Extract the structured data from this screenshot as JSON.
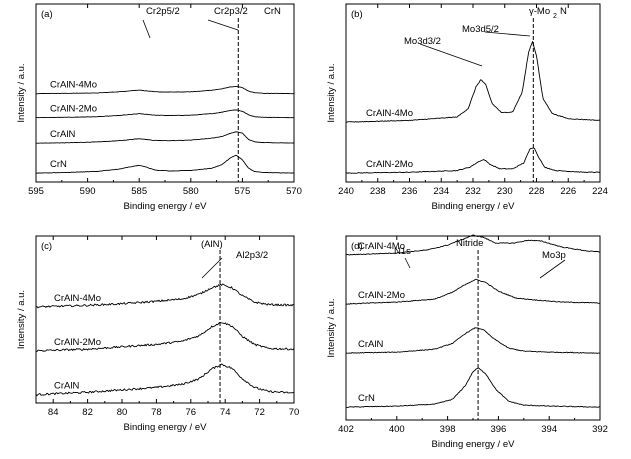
{
  "chart_data": [
    {
      "type": "line",
      "panel_label": "(a)",
      "xlabel": "Binding energy / eV",
      "ylabel": "Intensity / a.u.",
      "xlim": [
        595,
        570
      ],
      "x_reversed": true,
      "xticks": [
        595,
        590,
        585,
        580,
        575,
        570
      ],
      "tick_labels": [
        "595",
        "590",
        "585",
        "580",
        "575",
        "570"
      ],
      "ref_line_x": 575.4,
      "annotations": [
        {
          "text": "Cr2p5/2",
          "x": 585.5
        },
        {
          "text": "Cr2p3/2",
          "x": 577.2
        },
        {
          "text": "CrN",
          "x": 575.6
        }
      ],
      "series": [
        {
          "name": "CrN",
          "offset": 0.0,
          "values": [
            [
              595,
              0.0
            ],
            [
              592,
              0.02
            ],
            [
              589,
              0.06
            ],
            [
              587,
              0.13
            ],
            [
              586,
              0.2
            ],
            [
              585,
              0.26
            ],
            [
              584.3,
              0.2
            ],
            [
              583.5,
              0.1
            ],
            [
              582,
              0.07
            ],
            [
              580,
              0.09
            ],
            [
              578,
              0.16
            ],
            [
              577,
              0.28
            ],
            [
              576.2,
              0.5
            ],
            [
              575.6,
              0.6
            ],
            [
              575.0,
              0.44
            ],
            [
              574.4,
              0.16
            ],
            [
              573.8,
              0.05
            ],
            [
              573,
              0.02
            ],
            [
              570,
              0.0
            ]
          ]
        },
        {
          "name": "CrAlN",
          "offset": 1.0,
          "values": [
            [
              595,
              0.0
            ],
            [
              592,
              0.01
            ],
            [
              589,
              0.04
            ],
            [
              587,
              0.08
            ],
            [
              586,
              0.11
            ],
            [
              585,
              0.15
            ],
            [
              584.3,
              0.12
            ],
            [
              583.5,
              0.09
            ],
            [
              582,
              0.08
            ],
            [
              580,
              0.1
            ],
            [
              578,
              0.16
            ],
            [
              577,
              0.22
            ],
            [
              576.2,
              0.32
            ],
            [
              575.6,
              0.38
            ],
            [
              575.0,
              0.33
            ],
            [
              574.4,
              0.12
            ],
            [
              573.8,
              0.04
            ],
            [
              573,
              0.02
            ],
            [
              570,
              0.0
            ]
          ]
        },
        {
          "name": "CrAlN-2Mo",
          "offset": 1.85,
          "values": [
            [
              595,
              0.0
            ],
            [
              592,
              0.01
            ],
            [
              589,
              0.03
            ],
            [
              587,
              0.07
            ],
            [
              586,
              0.1
            ],
            [
              585,
              0.13
            ],
            [
              584.3,
              0.11
            ],
            [
              583.5,
              0.08
            ],
            [
              582,
              0.07
            ],
            [
              580,
              0.08
            ],
            [
              578,
              0.13
            ],
            [
              577,
              0.18
            ],
            [
              576.2,
              0.24
            ],
            [
              575.6,
              0.26
            ],
            [
              575.0,
              0.21
            ],
            [
              574.4,
              0.09
            ],
            [
              573.8,
              0.03
            ],
            [
              573,
              0.01
            ],
            [
              570,
              0.0
            ]
          ]
        },
        {
          "name": "CrAlN-4Mo",
          "offset": 2.65,
          "values": [
            [
              595,
              0.0
            ],
            [
              592,
              0.01
            ],
            [
              589,
              0.02
            ],
            [
              587,
              0.06
            ],
            [
              586,
              0.09
            ],
            [
              585,
              0.12
            ],
            [
              584.3,
              0.09
            ],
            [
              583.5,
              0.06
            ],
            [
              582,
              0.05
            ],
            [
              580,
              0.06
            ],
            [
              578,
              0.11
            ],
            [
              577,
              0.16
            ],
            [
              576.2,
              0.22
            ],
            [
              575.6,
              0.24
            ],
            [
              575.0,
              0.2
            ],
            [
              574.4,
              0.08
            ],
            [
              573.8,
              0.03
            ],
            [
              573,
              0.01
            ],
            [
              570,
              0.0
            ]
          ]
        }
      ]
    },
    {
      "type": "line",
      "panel_label": "(b)",
      "xlabel": "Binding energy / eV",
      "ylabel": "Intensity / a.u.",
      "xlim": [
        240,
        224
      ],
      "x_reversed": true,
      "xticks": [
        240,
        238,
        236,
        234,
        232,
        230,
        228,
        226,
        224
      ],
      "tick_labels": [
        "240",
        "238",
        "236",
        "234",
        "232",
        "230",
        "228",
        "226",
        "224"
      ],
      "ref_line_x": 228.2,
      "annotations": [
        {
          "text": "Mo3d3/2",
          "x": 231.4
        },
        {
          "text": "Mo3d5/2",
          "x": 228.3
        },
        {
          "text": "γ-Mo",
          "x": 228.2
        },
        {
          "text": "2",
          "x": 228.2
        },
        {
          "text": "N",
          "x": 228.2
        }
      ],
      "series": [
        {
          "name": "CrAlN-2Mo",
          "offset": 0.0,
          "values": [
            [
              240,
              0.0
            ],
            [
              236,
              0.01
            ],
            [
              233,
              0.03
            ],
            [
              232.2,
              0.07
            ],
            [
              231.6,
              0.14
            ],
            [
              231.3,
              0.16
            ],
            [
              230.9,
              0.1
            ],
            [
              230.3,
              0.05
            ],
            [
              229.5,
              0.05
            ],
            [
              228.8,
              0.12
            ],
            [
              228.4,
              0.29
            ],
            [
              228.15,
              0.3
            ],
            [
              227.9,
              0.2
            ],
            [
              227.5,
              0.07
            ],
            [
              226.8,
              0.03
            ],
            [
              225,
              0.01
            ],
            [
              224,
              0.01
            ]
          ]
        },
        {
          "name": "CrAlN-4Mo",
          "offset": 0.6,
          "values": [
            [
              240,
              0.0
            ],
            [
              236,
              0.02
            ],
            [
              233,
              0.06
            ],
            [
              232.3,
              0.16
            ],
            [
              231.8,
              0.42
            ],
            [
              231.5,
              0.5
            ],
            [
              231.2,
              0.44
            ],
            [
              230.8,
              0.22
            ],
            [
              230.2,
              0.11
            ],
            [
              229.5,
              0.12
            ],
            [
              228.9,
              0.35
            ],
            [
              228.5,
              0.82
            ],
            [
              228.25,
              0.95
            ],
            [
              228.0,
              0.78
            ],
            [
              227.6,
              0.28
            ],
            [
              227,
              0.1
            ],
            [
              226,
              0.04
            ],
            [
              224,
              0.02
            ]
          ]
        }
      ]
    },
    {
      "type": "line",
      "panel_label": "(c)",
      "xlabel": "Binding energy / eV",
      "ylabel": "Intensity / a.u.",
      "xlim": [
        85,
        70
      ],
      "x_reversed": true,
      "xticks": [
        84,
        82,
        80,
        78,
        76,
        74,
        72,
        70
      ],
      "tick_labels": [
        "84",
        "82",
        "80",
        "78",
        "76",
        "74",
        "72",
        "70"
      ],
      "ref_line_x": 74.3,
      "annotations": [
        {
          "text": "(AlN)",
          "x": 74.3
        },
        {
          "text": "Al2p3/2",
          "x": 73.8
        }
      ],
      "series": [
        {
          "name": "CrAlN",
          "offset": 0.0,
          "values": [
            [
              85,
              0.0
            ],
            [
              82,
              0.03
            ],
            [
              80,
              0.06
            ],
            [
              78,
              0.09
            ],
            [
              76.5,
              0.13
            ],
            [
              75.5,
              0.2
            ],
            [
              74.8,
              0.32
            ],
            [
              74.2,
              0.38
            ],
            [
              73.6,
              0.33
            ],
            [
              73.0,
              0.2
            ],
            [
              72.3,
              0.09
            ],
            [
              71.5,
              0.04
            ],
            [
              70,
              0.02
            ]
          ]
        },
        {
          "name": "CrAlN-2Mo",
          "offset": 0.55,
          "values": [
            [
              85,
              0.0
            ],
            [
              82,
              0.02
            ],
            [
              80,
              0.05
            ],
            [
              78,
              0.08
            ],
            [
              76.5,
              0.12
            ],
            [
              75.5,
              0.19
            ],
            [
              74.8,
              0.3
            ],
            [
              74.2,
              0.36
            ],
            [
              73.6,
              0.31
            ],
            [
              73.0,
              0.18
            ],
            [
              72.3,
              0.08
            ],
            [
              71.5,
              0.03
            ],
            [
              70,
              0.02
            ]
          ]
        },
        {
          "name": "CrAlN-4Mo",
          "offset": 1.1,
          "values": [
            [
              85,
              0.0
            ],
            [
              82,
              0.02
            ],
            [
              80,
              0.04
            ],
            [
              78,
              0.07
            ],
            [
              76.5,
              0.1
            ],
            [
              75.5,
              0.16
            ],
            [
              74.8,
              0.24
            ],
            [
              74.2,
              0.28
            ],
            [
              73.6,
              0.24
            ],
            [
              73.0,
              0.14
            ],
            [
              72.3,
              0.06
            ],
            [
              71.5,
              0.03
            ],
            [
              70,
              0.02
            ]
          ]
        }
      ]
    },
    {
      "type": "line",
      "panel_label": "(d)",
      "xlabel": "Binding energy / eV",
      "ylabel": "Intensity / a.u.",
      "xlim": [
        402,
        392
      ],
      "x_reversed": true,
      "xticks": [
        402,
        400,
        398,
        396,
        394,
        392
      ],
      "tick_labels": [
        "402",
        "400",
        "398",
        "396",
        "394",
        "392"
      ],
      "ref_line_x": 396.8,
      "annotations": [
        {
          "text": "N1s",
          "x": 397.8
        },
        {
          "text": "Nitride",
          "x": 396.8
        },
        {
          "text": "Mo3p",
          "x": 394.6
        }
      ],
      "series": [
        {
          "name": "CrN",
          "offset": 0.0,
          "values": [
            [
              402,
              0.0
            ],
            [
              400,
              0.01
            ],
            [
              398.5,
              0.03
            ],
            [
              397.8,
              0.08
            ],
            [
              397.3,
              0.22
            ],
            [
              397.0,
              0.36
            ],
            [
              396.8,
              0.4
            ],
            [
              396.5,
              0.34
            ],
            [
              396.1,
              0.18
            ],
            [
              395.6,
              0.06
            ],
            [
              395,
              0.02
            ],
            [
              394,
              0.01
            ],
            [
              392,
              0.0
            ]
          ]
        },
        {
          "name": "CrAlN",
          "offset": 0.55,
          "values": [
            [
              402,
              0.0
            ],
            [
              400,
              0.01
            ],
            [
              398.5,
              0.04
            ],
            [
              397.8,
              0.1
            ],
            [
              397.3,
              0.2
            ],
            [
              396.9,
              0.26
            ],
            [
              396.6,
              0.24
            ],
            [
              396.2,
              0.15
            ],
            [
              395.6,
              0.05
            ],
            [
              395,
              0.02
            ],
            [
              394,
              0.01
            ],
            [
              392,
              0.0
            ]
          ]
        },
        {
          "name": "CrAlN-2Mo",
          "offset": 1.05,
          "values": [
            [
              402,
              0.0
            ],
            [
              400,
              0.02
            ],
            [
              398.5,
              0.05
            ],
            [
              397.8,
              0.12
            ],
            [
              397.3,
              0.2
            ],
            [
              396.9,
              0.25
            ],
            [
              396.5,
              0.22
            ],
            [
              396.0,
              0.13
            ],
            [
              395.3,
              0.06
            ],
            [
              394.5,
              0.04
            ],
            [
              393.5,
              0.02
            ],
            [
              392,
              0.01
            ]
          ]
        },
        {
          "name": "CrAlN-4Mo",
          "offset": 1.55,
          "values": [
            [
              402,
              0.0
            ],
            [
              400,
              0.02
            ],
            [
              398.8,
              0.05
            ],
            [
              398.0,
              0.1
            ],
            [
              397.6,
              0.14
            ],
            [
              397.0,
              0.2
            ],
            [
              396.6,
              0.18
            ],
            [
              396.1,
              0.12
            ],
            [
              395.4,
              0.12
            ],
            [
              394.8,
              0.15
            ],
            [
              394.3,
              0.14
            ],
            [
              393.5,
              0.08
            ],
            [
              392.5,
              0.04
            ],
            [
              392,
              0.03
            ]
          ]
        }
      ]
    }
  ]
}
